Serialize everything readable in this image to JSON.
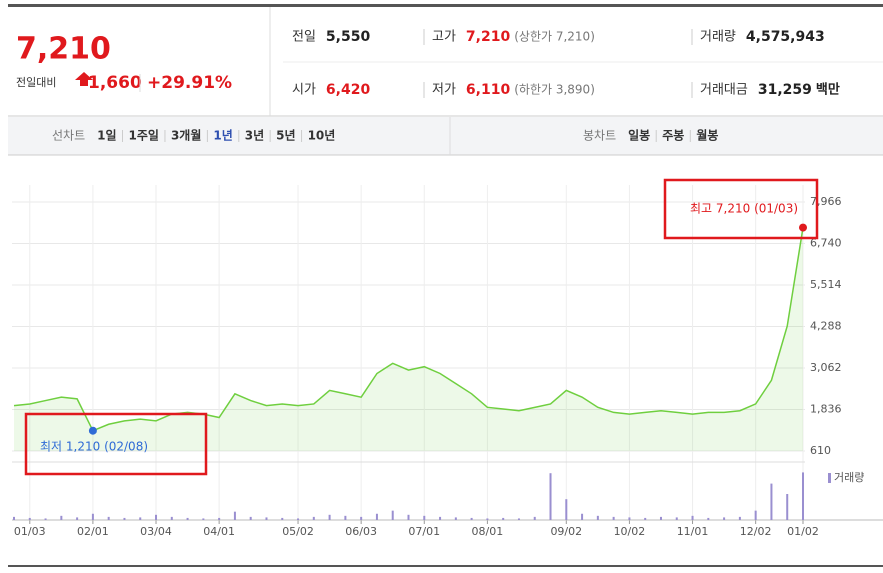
{
  "header": {
    "price": "7,210",
    "change_label": "전일대비",
    "change": "1,660",
    "change_rate": "+29.91%",
    "stats": [
      [
        {
          "label": "전일",
          "value": "5,550"
        },
        {
          "label": "고가",
          "value": "7,210",
          "note": "(상한가 7,210)"
        },
        {
          "label": "거래량",
          "value": "4,575,943"
        }
      ],
      [
        {
          "label": "시가",
          "value": "6,420"
        },
        {
          "label": "저가",
          "value": "6,110",
          "note": "(하한가 3,890)"
        },
        {
          "label": "거래대금",
          "value": "31,259",
          "unit": "백만"
        }
      ]
    ]
  },
  "tabs": {
    "line_label": "선차트",
    "line_items": [
      "1일",
      "1주일",
      "3개월",
      "1년",
      "3년",
      "5년",
      "10년"
    ],
    "line_active": "1년",
    "candle_label": "봉차트",
    "candle_items": [
      "일봉",
      "주봉",
      "월봉"
    ]
  },
  "chart_data": {
    "type": "line",
    "categories": [
      null,
      "01/03",
      null,
      null,
      null,
      "02/01",
      null,
      null,
      null,
      "03/04",
      null,
      null,
      null,
      "04/01",
      null,
      null,
      null,
      null,
      "05/02",
      null,
      null,
      null,
      "06/03",
      null,
      null,
      null,
      "07/01",
      null,
      null,
      null,
      "08/01",
      null,
      null,
      null,
      null,
      "09/02",
      null,
      null,
      null,
      "10/02",
      null,
      null,
      null,
      "11/01",
      null,
      null,
      null,
      "12/02",
      null,
      null,
      "01/02"
    ],
    "series": [
      {
        "color": "#6fcf3f",
        "values": [
          1950,
          2000,
          2100,
          2200,
          2150,
          1210,
          1400,
          1500,
          1550,
          1500,
          1700,
          1750,
          1700,
          1600,
          2300,
          2100,
          1950,
          2000,
          1950,
          2000,
          2400,
          2300,
          2200,
          2900,
          3200,
          3000,
          3100,
          2900,
          2600,
          2300,
          1900,
          1850,
          1800,
          1900,
          2000,
          2400,
          2200,
          1900,
          1750,
          1700,
          1750,
          1800,
          1750,
          1700,
          1750,
          1750,
          1800,
          2000,
          2700,
          4300,
          7210
        ]
      }
    ],
    "ylim": [
      610,
      7966
    ],
    "yticks": [
      610,
      {
        "value": 1836,
        "label": "1,836"
      },
      {
        "value": 3062,
        "label": "3,062"
      },
      {
        "value": 4288,
        "label": "4,288"
      },
      {
        "value": 5514,
        "label": "5,514"
      },
      {
        "value": 6740,
        "label": "6,740"
      },
      {
        "value": 7966,
        "label": "7,966"
      }
    ],
    "grid": true,
    "high_annotation": "최고 7,210 (01/03)",
    "low_annotation": "최저 1,210 (02/08)",
    "volume": {
      "name": "거래량",
      "color": "#9a8fd0",
      "ylim": [
        0,
        5000000
      ],
      "values": [
        300000,
        200000,
        150000,
        400000,
        250000,
        600000,
        300000,
        200000,
        250000,
        500000,
        300000,
        200000,
        150000,
        200000,
        800000,
        300000,
        250000,
        200000,
        150000,
        300000,
        500000,
        400000,
        300000,
        600000,
        900000,
        500000,
        400000,
        300000,
        250000,
        200000,
        150000,
        200000,
        150000,
        300000,
        4500000,
        2000000,
        600000,
        400000,
        300000,
        250000,
        200000,
        300000,
        250000,
        400000,
        200000,
        250000,
        300000,
        900000,
        3500000,
        2500000,
        4575943
      ]
    }
  }
}
